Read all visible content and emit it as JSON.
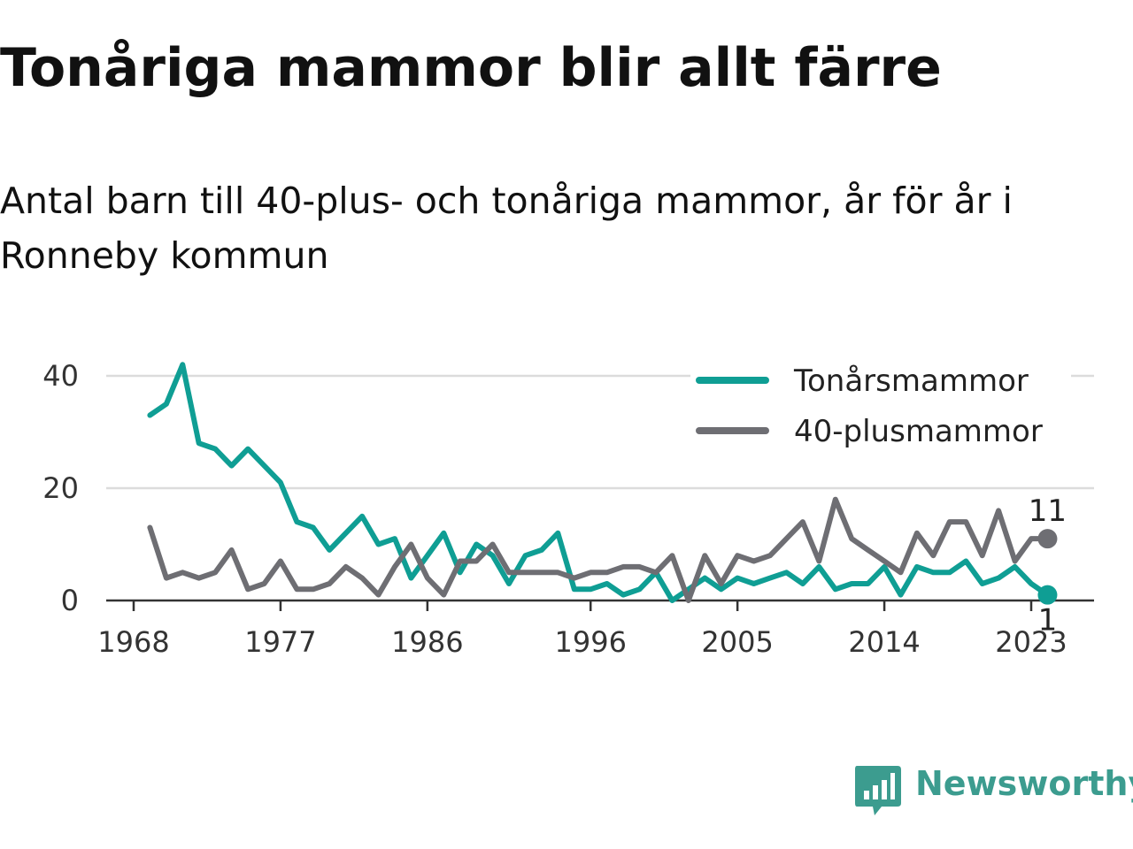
{
  "title": "Tonåriga mammor blir allt färre",
  "subtitle": "Antal barn till 40-plus- och tonåriga mammor, år för år i Ronneby kommun",
  "brand": {
    "name": "Newsworthy",
    "color": "#3c9c8f"
  },
  "chart_data": {
    "type": "line",
    "title": "Tonåriga mammor blir allt färre",
    "subtitle": "Antal barn till 40-plus- och tonåriga mammor, år för år i Ronneby kommun",
    "xlabel": "",
    "ylabel": "",
    "x_ticks": [
      "1968",
      "1977",
      "1986",
      "1996",
      "2005",
      "2014",
      "2023"
    ],
    "y_ticks": [
      "0",
      "20",
      "40"
    ],
    "ylim": [
      0,
      45
    ],
    "grid": true,
    "legend_position": "top-right",
    "x": [
      1969,
      1970,
      1971,
      1972,
      1973,
      1974,
      1975,
      1976,
      1977,
      1978,
      1979,
      1980,
      1981,
      1982,
      1983,
      1984,
      1985,
      1986,
      1987,
      1988,
      1989,
      1990,
      1991,
      1992,
      1993,
      1994,
      1995,
      1996,
      1997,
      1998,
      1999,
      2000,
      2001,
      2002,
      2003,
      2004,
      2005,
      2006,
      2007,
      2008,
      2009,
      2010,
      2011,
      2012,
      2013,
      2014,
      2015,
      2016,
      2017,
      2018,
      2019,
      2020,
      2021,
      2022,
      2023,
      2024
    ],
    "series": [
      {
        "name": "Tonårsmammor",
        "color": "#0f9e94",
        "values": [
          33,
          35,
          42,
          28,
          27,
          24,
          27,
          24,
          21,
          14,
          13,
          9,
          12,
          15,
          10,
          11,
          4,
          8,
          12,
          5,
          10,
          8,
          3,
          8,
          9,
          12,
          2,
          2,
          3,
          1,
          2,
          5,
          0,
          2,
          4,
          2,
          4,
          3,
          4,
          5,
          3,
          6,
          2,
          3,
          3,
          6,
          1,
          6,
          5,
          5,
          7,
          3,
          4,
          6,
          3,
          1
        ]
      },
      {
        "name": "40-plusmammor",
        "color": "#6e6e73",
        "values": [
          13,
          4,
          5,
          4,
          5,
          9,
          2,
          3,
          7,
          2,
          2,
          3,
          6,
          4,
          1,
          6,
          10,
          4,
          1,
          7,
          7,
          10,
          5,
          5,
          5,
          5,
          4,
          5,
          5,
          6,
          6,
          5,
          8,
          0,
          8,
          3,
          8,
          7,
          8,
          11,
          14,
          7,
          18,
          11,
          9,
          7,
          5,
          12,
          8,
          14,
          14,
          8,
          16,
          7,
          11,
          11
        ]
      }
    ],
    "end_labels": {
      "Tonårsmammor": "1",
      "40-plusmammor": "11"
    }
  }
}
